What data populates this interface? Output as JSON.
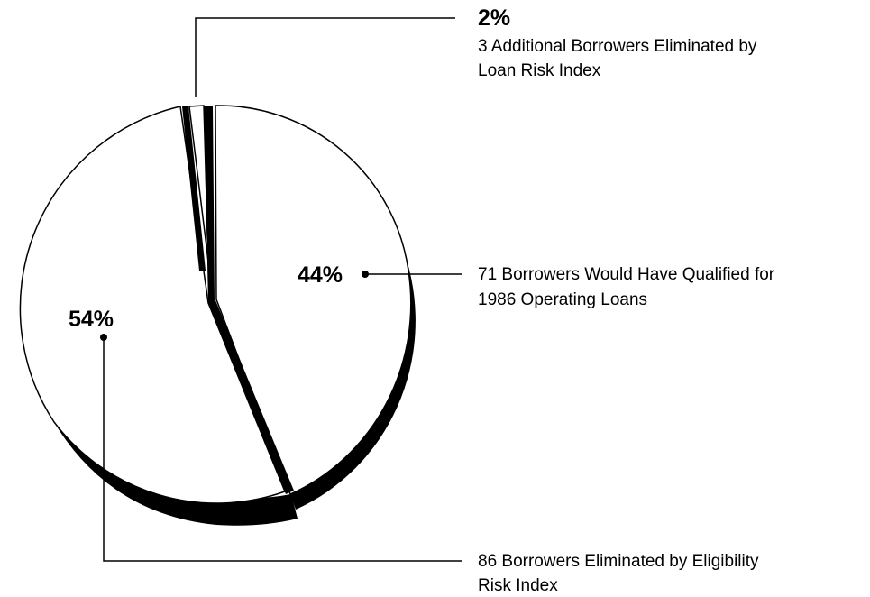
{
  "chart_data": {
    "type": "pie",
    "slices": [
      {
        "value": 44,
        "percent_label": "44%",
        "lines": [
          "71 Borrowers Would Have Qualified for",
          "1986 Operating Loans"
        ]
      },
      {
        "value": 54,
        "percent_label": "54%",
        "lines": [
          "86 Borrowers Eliminated by Eligibility",
          "Risk Index"
        ]
      },
      {
        "value": 2,
        "percent_label": "2%",
        "lines": [
          "3 Additional Borrowers Eliminated by",
          "Loan Risk Index"
        ]
      }
    ],
    "colors": {
      "fill": "#ffffff",
      "edge": "#000000"
    }
  }
}
